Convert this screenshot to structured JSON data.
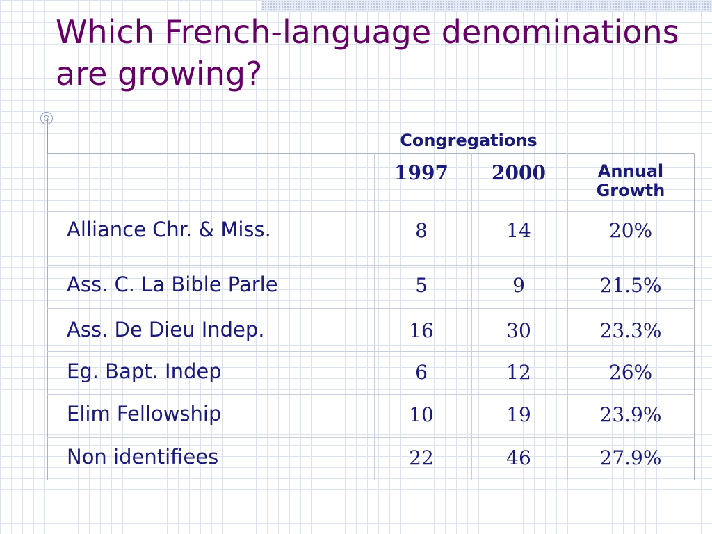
{
  "slide": {
    "title": "Which French-language denominations are growing?"
  },
  "table": {
    "group_header": "Congregations",
    "col_1997": "1997",
    "col_2000": "2000",
    "col_growth": "Annual Growth",
    "rows": [
      {
        "name": "Alliance Chr. & Miss.",
        "c1997": "8",
        "c2000": "14",
        "growth": "20%"
      },
      {
        "name": "Ass. C. La Bible Parle",
        "c1997": "5",
        "c2000": "9",
        "growth": "21.5%"
      },
      {
        "name": "Ass. De Dieu Indep.",
        "c1997": "16",
        "c2000": "30",
        "growth": "23.3%"
      },
      {
        "name": "Eg. Bapt. Indep",
        "c1997": "6",
        "c2000": "12",
        "growth": "26%"
      },
      {
        "name": "Elim Fellowship",
        "c1997": "10",
        "c2000": "19",
        "growth": "23.9%"
      },
      {
        "name": "Non identifiees",
        "c1997": "22",
        "c2000": "46",
        "growth": "27.9%"
      }
    ]
  }
}
